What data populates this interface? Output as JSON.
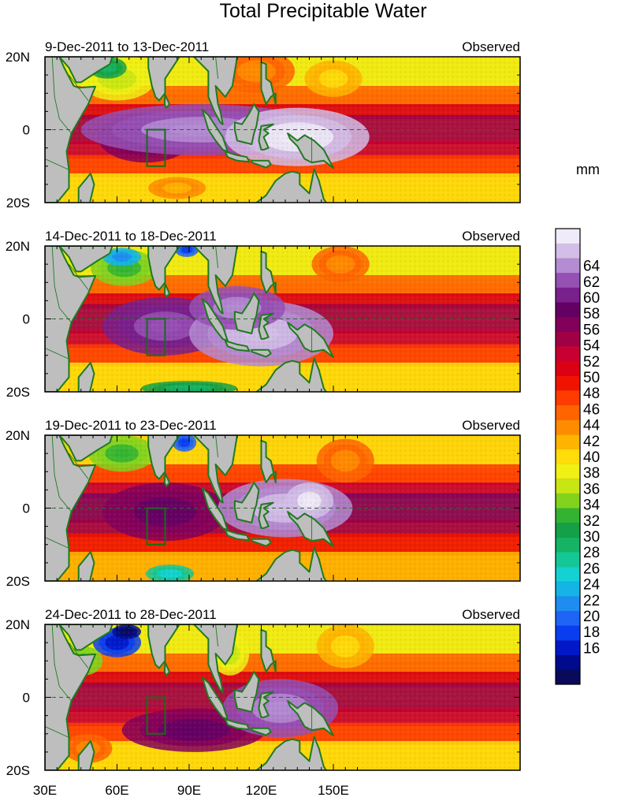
{
  "title": "Total Precipitable Water",
  "units": "mm",
  "panels": [
    {
      "period": "9-Dec-2011 to 13-Dec-2011",
      "label": "Observed"
    },
    {
      "period": "14-Dec-2011 to 18-Dec-2011",
      "label": "Observed"
    },
    {
      "period": "19-Dec-2011 to 23-Dec-2011",
      "label": "Observed"
    },
    {
      "period": "24-Dec-2011 to 28-Dec-2011",
      "label": "Observed"
    }
  ],
  "lat_labels": [
    "20N",
    "0",
    "20S"
  ],
  "lon_labels": [
    "30E",
    "60E",
    "90E",
    "120E",
    "150E"
  ],
  "colorbar": {
    "tick_labels": [
      "16",
      "18",
      "20",
      "22",
      "24",
      "26",
      "28",
      "30",
      "32",
      "34",
      "36",
      "38",
      "40",
      "42",
      "44",
      "46",
      "48",
      "50",
      "52",
      "54",
      "56",
      "58",
      "60",
      "62",
      "64"
    ],
    "colors": [
      "#0a0a5a",
      "#000a8c",
      "#0018c8",
      "#0a3cf0",
      "#1e64f5",
      "#1e8cf0",
      "#14b4e6",
      "#14d2d2",
      "#14c896",
      "#14b464",
      "#14a046",
      "#32b432",
      "#82d21e",
      "#c8e614",
      "#f0f014",
      "#ffdc0a",
      "#ffb400",
      "#ff8c00",
      "#ff6400",
      "#ff3c00",
      "#f01400",
      "#dc0014",
      "#c80032",
      "#a00046",
      "#82005a",
      "#640064",
      "#78208c",
      "#9650b4",
      "#b48cd2",
      "#d2bee6",
      "#f0ebf8"
    ],
    "n_sub": 2
  },
  "colors": {
    "land": "#bebebe",
    "coast": "#1f7a1f",
    "box": "#137013"
  }
}
